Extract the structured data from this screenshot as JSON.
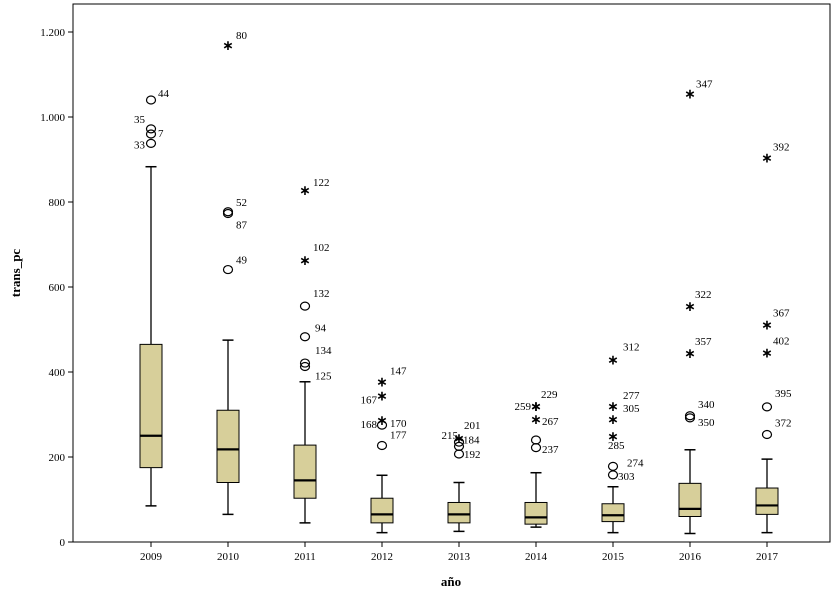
{
  "chart_data": {
    "type": "boxplot",
    "xlabel": "año",
    "ylabel": "trans_pc",
    "ylim": [
      0,
      1230
    ],
    "yticks": [
      0,
      200,
      400,
      600,
      800,
      1000,
      1200
    ],
    "ytick_labels": [
      "0",
      "200",
      "400",
      "600",
      "800",
      "1.000",
      "1.200"
    ],
    "box_color": "#d7cf9a",
    "categories": [
      "2009",
      "2010",
      "2011",
      "2012",
      "2013",
      "2014",
      "2015",
      "2016",
      "2017"
    ],
    "boxes": [
      {
        "label": "2009",
        "whisker_low": 85,
        "q1": 175,
        "median": 250,
        "q3": 465,
        "whisker_high": 883,
        "outliers": [
          {
            "id": "44",
            "value": 1040,
            "marker": "circle"
          },
          {
            "id": "35",
            "value": 972,
            "marker": "circle"
          },
          {
            "id": "7",
            "value": 960,
            "marker": "circle"
          },
          {
            "id": "33",
            "value": 938,
            "marker": "circle"
          }
        ]
      },
      {
        "label": "2010",
        "whisker_low": 65,
        "q1": 140,
        "median": 218,
        "q3": 310,
        "whisker_high": 475,
        "outliers": [
          {
            "id": "80",
            "value": 1170,
            "marker": "star"
          },
          {
            "id": "52",
            "value": 777,
            "marker": "circle"
          },
          {
            "id": "87",
            "value": 773,
            "marker": "circle"
          },
          {
            "id": "49",
            "value": 641,
            "marker": "circle"
          }
        ]
      },
      {
        "label": "2011",
        "whisker_low": 45,
        "q1": 103,
        "median": 145,
        "q3": 228,
        "whisker_high": 377,
        "outliers": [
          {
            "id": "122",
            "value": 828,
            "marker": "star"
          },
          {
            "id": "102",
            "value": 663,
            "marker": "star"
          },
          {
            "id": "132",
            "value": 555,
            "marker": "circle"
          },
          {
            "id": "94",
            "value": 483,
            "marker": "circle"
          },
          {
            "id": "134",
            "value": 421,
            "marker": "circle"
          },
          {
            "id": "125",
            "value": 413,
            "marker": "circle"
          }
        ]
      },
      {
        "label": "2012",
        "whisker_low": 22,
        "q1": 45,
        "median": 65,
        "q3": 103,
        "whisker_high": 157,
        "outliers": [
          {
            "id": "147",
            "value": 378,
            "marker": "star"
          },
          {
            "id": "167",
            "value": 345,
            "marker": "star"
          },
          {
            "id": "170",
            "value": 287,
            "marker": "star"
          },
          {
            "id": "168",
            "value": 275,
            "marker": "circle"
          },
          {
            "id": "177",
            "value": 227,
            "marker": "circle"
          }
        ]
      },
      {
        "label": "2013",
        "whisker_low": 25,
        "q1": 45,
        "median": 65,
        "q3": 93,
        "whisker_high": 140,
        "outliers": [
          {
            "id": "201",
            "value": 245,
            "marker": "star"
          },
          {
            "id": "215",
            "value": 235,
            "marker": "circle"
          },
          {
            "id": "184",
            "value": 225,
            "marker": "circle"
          },
          {
            "id": "192",
            "value": 207,
            "marker": "circle"
          }
        ]
      },
      {
        "label": "2014",
        "whisker_low": 35,
        "q1": 42,
        "median": 58,
        "q3": 93,
        "whisker_high": 163,
        "outliers": [
          {
            "id": "229",
            "value": 320,
            "marker": "star"
          },
          {
            "id": "259",
            "value": 320,
            "marker": "star"
          },
          {
            "id": "267",
            "value": 290,
            "marker": "star"
          },
          {
            "id": "237",
            "value": 240,
            "marker": "circle"
          },
          {
            "id": "",
            "value": 222,
            "marker": "circle"
          }
        ]
      },
      {
        "label": "2015",
        "whisker_low": 22,
        "q1": 48,
        "median": 63,
        "q3": 90,
        "whisker_high": 130,
        "outliers": [
          {
            "id": "312",
            "value": 430,
            "marker": "star"
          },
          {
            "id": "277",
            "value": 320,
            "marker": "star"
          },
          {
            "id": "305",
            "value": 290,
            "marker": "star"
          },
          {
            "id": "285",
            "value": 250,
            "marker": "star"
          },
          {
            "id": "274",
            "value": 178,
            "marker": "circle"
          },
          {
            "id": "303",
            "value": 158,
            "marker": "circle"
          }
        ]
      },
      {
        "label": "2016",
        "whisker_low": 20,
        "q1": 60,
        "median": 78,
        "q3": 138,
        "whisker_high": 217,
        "outliers": [
          {
            "id": "347",
            "value": 1055,
            "marker": "star"
          },
          {
            "id": "322",
            "value": 555,
            "marker": "star"
          },
          {
            "id": "357",
            "value": 445,
            "marker": "star"
          },
          {
            "id": "340",
            "value": 297,
            "marker": "circle"
          },
          {
            "id": "350",
            "value": 292,
            "marker": "circle"
          }
        ]
      },
      {
        "label": "2017",
        "whisker_low": 22,
        "q1": 65,
        "median": 86,
        "q3": 127,
        "whisker_high": 195,
        "outliers": [
          {
            "id": "392",
            "value": 905,
            "marker": "star"
          },
          {
            "id": "367",
            "value": 512,
            "marker": "star"
          },
          {
            "id": "402",
            "value": 446,
            "marker": "star"
          },
          {
            "id": "395",
            "value": 318,
            "marker": "circle"
          },
          {
            "id": "372",
            "value": 253,
            "marker": "circle"
          }
        ]
      }
    ]
  }
}
